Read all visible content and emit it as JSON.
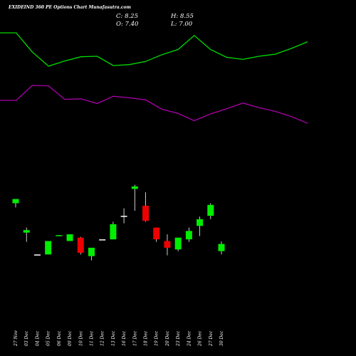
{
  "header": {
    "title": "EXIDEIND 360 PE Options Chart Munafasutra.com",
    "close": "C: 8.25",
    "high": "H: 8.55",
    "open": "O: 7.40",
    "low": "L: 7.00"
  },
  "colors": {
    "background": "#000000",
    "upper_band": "#00dd00",
    "lower_band": "#aa00aa",
    "up_candle": "#00ee00",
    "down_candle": "#ee0000",
    "neutral_candle": "#ffffff"
  },
  "chart_data": {
    "type": "candlestick",
    "title": "EXIDEIND 360 PE Options Chart Munafasutra.com",
    "x": [
      "27 Nov",
      "03 Dec",
      "04 Dec",
      "05 Dec",
      "06 Dec",
      "09 Dec",
      "10 Dec",
      "11 Dec",
      "12 Dec",
      "13 Dec",
      "16 Dec",
      "17 Dec",
      "18 Dec",
      "19 Dec",
      "20 Dec",
      "23 Dec",
      "24 Dec",
      "26 Dec",
      "27 Dec",
      "30 Dec"
    ],
    "ohlc": [
      {
        "o": 13.1,
        "h": 13.6,
        "l": 12.6,
        "c": 13.6
      },
      {
        "o": 9.6,
        "h": 10.2,
        "l": 8.5,
        "c": 9.9
      },
      {
        "o": 7.0,
        "h": 7.0,
        "l": 7.0,
        "c": 7.0
      },
      {
        "o": 7.0,
        "h": 8.6,
        "l": 7.0,
        "c": 8.6
      },
      {
        "o": 9.2,
        "h": 9.3,
        "l": 9.2,
        "c": 9.3
      },
      {
        "o": 8.6,
        "h": 9.4,
        "l": 8.6,
        "c": 9.4
      },
      {
        "o": 9.0,
        "h": 9.1,
        "l": 7.0,
        "c": 7.2
      },
      {
        "o": 6.8,
        "h": 7.8,
        "l": 6.3,
        "c": 7.8
      },
      {
        "o": 8.8,
        "h": 8.8,
        "l": 8.8,
        "c": 8.8
      },
      {
        "o": 8.8,
        "h": 10.9,
        "l": 8.8,
        "c": 10.6
      },
      {
        "o": 11.6,
        "h": 12.5,
        "l": 10.7,
        "c": 11.6
      },
      {
        "o": 14.8,
        "h": 15.3,
        "l": 12.2,
        "c": 15.1
      },
      {
        "o": 12.8,
        "h": 14.4,
        "l": 10.9,
        "c": 11.0
      },
      {
        "o": 10.2,
        "h": 10.2,
        "l": 8.5,
        "c": 8.8
      },
      {
        "o": 8.6,
        "h": 9.4,
        "l": 6.9,
        "c": 7.8
      },
      {
        "o": 7.6,
        "h": 9.0,
        "l": 7.4,
        "c": 9.0
      },
      {
        "o": 8.8,
        "h": 10.2,
        "l": 8.5,
        "c": 9.8
      },
      {
        "o": 10.4,
        "h": 11.5,
        "l": 9.2,
        "c": 11.2
      },
      {
        "o": 11.6,
        "h": 13.1,
        "l": 11.2,
        "c": 12.9
      },
      {
        "o": 7.4,
        "h": 8.55,
        "l": 7.0,
        "c": 8.25
      }
    ],
    "band_upper": [
      38.2,
      38.2,
      34.5,
      31.8,
      32.8,
      33.6,
      33.7,
      31.9,
      32.1,
      32.7,
      34.0,
      35.0,
      37.7,
      35.0,
      33.5,
      33.1,
      33.7,
      34.1,
      35.2,
      36.5
    ],
    "band_lower": [
      25.2,
      25.2,
      28.1,
      28.0,
      25.4,
      25.5,
      24.6,
      26.0,
      25.7,
      25.3,
      23.5,
      22.7,
      21.3,
      22.6,
      23.6,
      24.7,
      23.8,
      23.1,
      22.1,
      20.8
    ],
    "xlabel": "",
    "ylabel": "",
    "grid": false,
    "legend": "none"
  }
}
